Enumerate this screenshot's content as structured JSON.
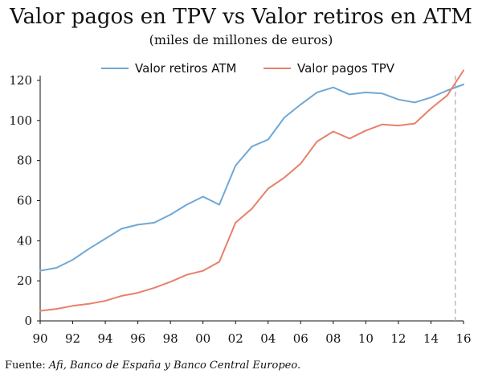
{
  "chart_data": {
    "type": "line",
    "title": "Valor pagos en TPV vs Valor retiros en ATM",
    "subtitle": "(miles de millones de euros)",
    "x": [
      1990,
      1991,
      1992,
      1993,
      1994,
      1995,
      1996,
      1997,
      1998,
      1999,
      2000,
      2001,
      2002,
      2003,
      2004,
      2005,
      2006,
      2007,
      2008,
      2009,
      2010,
      2011,
      2012,
      2013,
      2014,
      2015,
      2016
    ],
    "xlim": [
      1990,
      2016
    ],
    "xticks": [
      "90",
      "92",
      "94",
      "96",
      "98",
      "00",
      "02",
      "04",
      "06",
      "08",
      "10",
      "12",
      "14",
      "16"
    ],
    "ylim": [
      0,
      120
    ],
    "yticks": [
      0,
      20,
      40,
      60,
      80,
      100,
      120
    ],
    "series": [
      {
        "name": "Valor retiros ATM",
        "color": "#6fa8d6",
        "values": [
          25,
          26.5,
          30.5,
          36,
          41,
          46,
          48,
          49,
          53,
          58,
          62,
          58,
          77.5,
          87,
          90.5,
          101.5,
          108,
          114,
          116.5,
          113,
          114,
          113.5,
          110.5,
          109,
          111.5,
          115,
          118
        ]
      },
      {
        "name": "Valor pagos TPV",
        "color": "#e8806a",
        "values": [
          5,
          6,
          7.5,
          8.5,
          10,
          12.5,
          14,
          16.5,
          19.5,
          23,
          25,
          29.5,
          49,
          56,
          66,
          71.5,
          78.5,
          89.5,
          94.5,
          91,
          95,
          98,
          97.5,
          98.5,
          106,
          112.5,
          125
        ]
      }
    ],
    "reference_line": {
      "x": 2015.5,
      "style": "dashed",
      "color": "#aaaaaa"
    },
    "legend_position": "top-center",
    "grid": false
  },
  "source": {
    "label": "Fuente: ",
    "text": "Afi, Banco de España y Banco Central Europeo."
  }
}
